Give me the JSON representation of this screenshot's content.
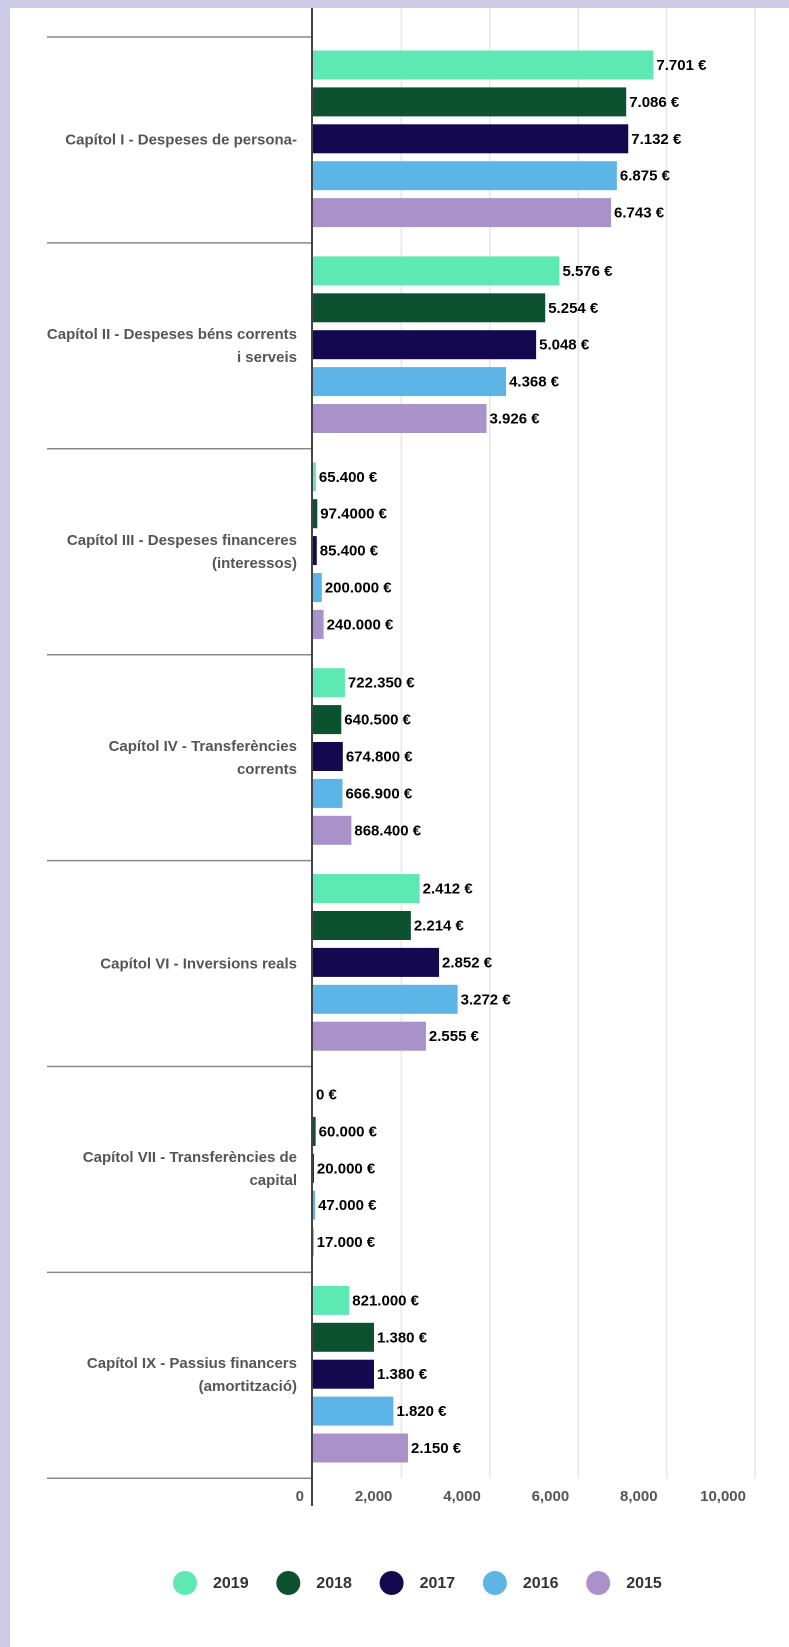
{
  "chart_data": {
    "type": "bar",
    "orientation": "horizontal",
    "categories": [
      "Capítol I - Despeses de persona-",
      "Capítol II - Despeses béns corrents i serveis",
      "Capítol III - Despeses financeres (interessos)",
      "Capítol IV - Transferències corrents",
      "Capítol VI - Inversions reals",
      "Capítol VII - Transferències de capital",
      "Capítol IX - Passius financers (amortització)"
    ],
    "series": [
      {
        "name": "2019",
        "color": "#5ee8b4",
        "values": [
          7701,
          5576,
          65.4,
          722.35,
          2412,
          0,
          821
        ],
        "value_labels": [
          "7.701 €",
          "5.576 €",
          "65.400 €",
          "722.350 €",
          "2.412 €",
          "0 €",
          "821.000 €"
        ]
      },
      {
        "name": "2018",
        "color": "#0d5230",
        "values": [
          7086,
          5254,
          97.4,
          640.5,
          2214,
          60,
          1380
        ],
        "value_labels": [
          "7.086 €",
          "5.254 €",
          "97.4000 €",
          "640.500 €",
          "2.214 €",
          "60.000 €",
          "1.380 €"
        ]
      },
      {
        "name": "2017",
        "color": "#14084f",
        "values": [
          7132,
          5048,
          85.4,
          674.8,
          2852,
          20,
          1380
        ],
        "value_labels": [
          "7.132 €",
          "5.048 €",
          "85.400 €",
          "674.800 €",
          "2.852 €",
          "20.000 €",
          "1.380 €"
        ]
      },
      {
        "name": "2016",
        "color": "#5cb5e6",
        "values": [
          6875,
          4368,
          200,
          666.9,
          3272,
          47,
          1820
        ],
        "value_labels": [
          "6.875 €",
          "4.368 €",
          "200.000 €",
          "666.900 €",
          "3.272 €",
          "47.000 €",
          "1.820 €"
        ]
      },
      {
        "name": "2015",
        "color": "#a991c9",
        "values": [
          6743,
          3926,
          240,
          868.4,
          2555,
          17,
          2150
        ],
        "value_labels": [
          "6.743 €",
          "3.926 €",
          "240.000 €",
          "868.400 €",
          "2.555 €",
          "17.000 €",
          "2.150 €"
        ]
      }
    ],
    "xlim": [
      0,
      10000
    ],
    "xticks": [
      0,
      {
        "value": 2000,
        "label": "2,000"
      },
      {
        "value": 4000,
        "label": "4,000"
      },
      {
        "value": 6000,
        "label": "6,000"
      },
      {
        "value": 8000,
        "label": "8,000"
      },
      {
        "value": 10000,
        "label": "10,000"
      }
    ],
    "grid": true,
    "legend": "bottom"
  }
}
